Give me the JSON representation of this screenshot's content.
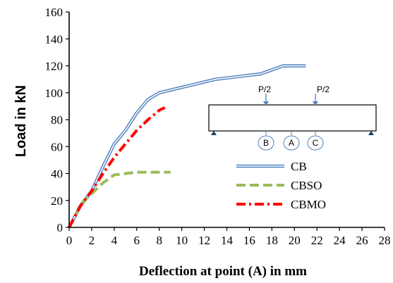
{
  "chart_data": {
    "type": "line",
    "xlabel": "Deflection at point (A) in mm",
    "ylabel": "Load in kN",
    "xlim": [
      0,
      28
    ],
    "ylim": [
      0,
      160
    ],
    "xticks": [
      0,
      2,
      4,
      6,
      8,
      10,
      12,
      14,
      16,
      18,
      20,
      22,
      24,
      26,
      28
    ],
    "yticks": [
      0,
      20,
      40,
      60,
      80,
      100,
      120,
      140,
      160
    ],
    "grid": false,
    "legend_position": "center-right",
    "series": [
      {
        "name": "CB",
        "style": "double-line",
        "color": "#4f81bd",
        "x": [
          0,
          0.5,
          1.0,
          2.0,
          3.0,
          4.0,
          5.0,
          6.0,
          7.0,
          8.0,
          9.0,
          10.0,
          11.0,
          12.0,
          13.0,
          14.0,
          15.0,
          16.0,
          17.0,
          18.0,
          19.0,
          20.0,
          21.0
        ],
        "y": [
          0,
          8,
          16,
          27,
          45,
          62,
          72,
          85,
          95,
          100,
          102,
          104,
          106,
          108,
          110,
          111,
          112,
          113,
          114,
          117,
          120,
          120,
          120
        ]
      },
      {
        "name": "CBSO",
        "style": "dashed",
        "color": "#9bbb59",
        "x": [
          0,
          0.5,
          1.0,
          2.0,
          3.0,
          4.0,
          5.0,
          6.0,
          7.0,
          8.0,
          9.0
        ],
        "y": [
          0,
          8,
          17,
          25,
          33,
          39,
          40,
          41,
          41,
          41,
          41
        ]
      },
      {
        "name": "CBMO",
        "style": "dash-dot",
        "color": "#ff0000",
        "x": [
          0,
          0.5,
          1.0,
          2.0,
          3.0,
          4.0,
          5.0,
          6.0,
          7.0,
          8.0,
          8.5
        ],
        "y": [
          0,
          8,
          16,
          27,
          40,
          52,
          62,
          72,
          80,
          87,
          89
        ]
      }
    ],
    "inset_diagram": {
      "load_labels": [
        "P/2",
        "P/2"
      ],
      "point_labels": [
        "B",
        "A",
        "C"
      ]
    }
  }
}
